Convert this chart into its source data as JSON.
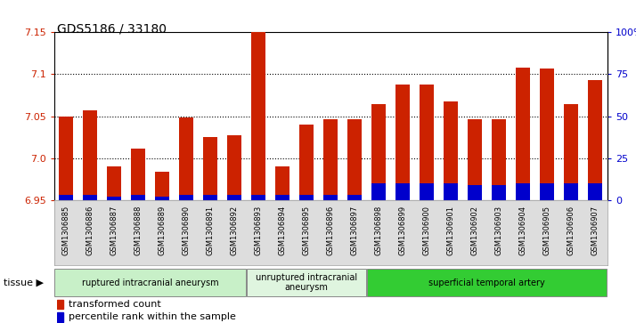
{
  "title": "GDS5186 / 33180",
  "samples": [
    "GSM1306885",
    "GSM1306886",
    "GSM1306887",
    "GSM1306888",
    "GSM1306889",
    "GSM1306890",
    "GSM1306891",
    "GSM1306892",
    "GSM1306893",
    "GSM1306894",
    "GSM1306895",
    "GSM1306896",
    "GSM1306897",
    "GSM1306898",
    "GSM1306899",
    "GSM1306900",
    "GSM1306901",
    "GSM1306902",
    "GSM1306903",
    "GSM1306904",
    "GSM1306905",
    "GSM1306906",
    "GSM1306907"
  ],
  "transformed_count": [
    7.05,
    7.057,
    6.99,
    7.012,
    6.984,
    7.049,
    7.025,
    7.027,
    7.152,
    6.99,
    7.04,
    7.047,
    7.047,
    7.065,
    7.088,
    7.088,
    7.068,
    7.046,
    7.047,
    7.108,
    7.107,
    7.065,
    7.093
  ],
  "percentile_rank": [
    3,
    3,
    2,
    3,
    2,
    3,
    3,
    3,
    3,
    3,
    3,
    3,
    3,
    10,
    10,
    10,
    10,
    9,
    9,
    10,
    10,
    10,
    10
  ],
  "groups": [
    {
      "label": "ruptured intracranial aneurysm",
      "start": 0,
      "end": 8,
      "color": "#c8f0c8"
    },
    {
      "label": "unruptured intracranial\naneurysm",
      "start": 8,
      "end": 13,
      "color": "#dff5df"
    },
    {
      "label": "superficial temporal artery",
      "start": 13,
      "end": 23,
      "color": "#33cc33"
    }
  ],
  "ylim_left": [
    6.95,
    7.15
  ],
  "ylim_right": [
    0,
    100
  ],
  "yticks_left": [
    6.95,
    7.0,
    7.05,
    7.1,
    7.15
  ],
  "yticks_right": [
    0,
    25,
    50,
    75,
    100
  ],
  "ytick_labels_right": [
    "0",
    "25",
    "50",
    "75",
    "100%"
  ],
  "bar_color_red": "#cc2200",
  "bar_color_blue": "#0000cc",
  "bar_width": 0.6,
  "legend_items": [
    {
      "label": "transformed count",
      "color": "#cc2200"
    },
    {
      "label": "percentile rank within the sample",
      "color": "#0000cc"
    }
  ]
}
